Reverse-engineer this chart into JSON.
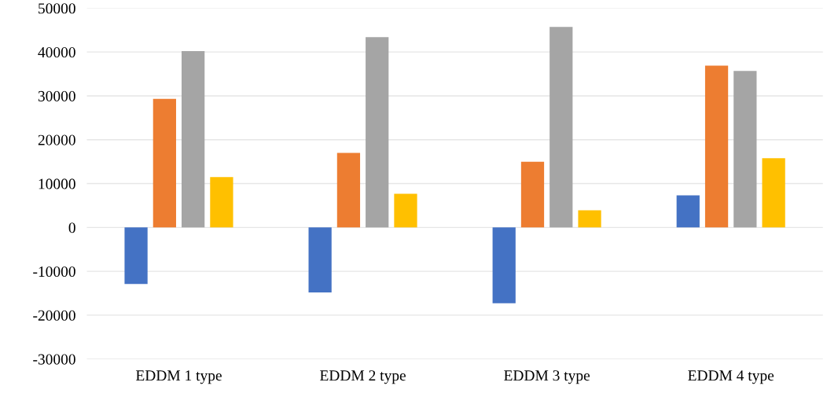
{
  "chart_data": {
    "type": "bar",
    "categories": [
      "EDDM 1 type",
      "EDDM 2 type",
      "EDDM 3 type",
      "EDDM 4 type"
    ],
    "series": [
      {
        "color": "#4472c4",
        "values": [
          -12900,
          -14800,
          -17300,
          7300
        ]
      },
      {
        "color": "#ed7d31",
        "values": [
          29300,
          17000,
          15000,
          36900
        ]
      },
      {
        "color": "#a5a5a5",
        "values": [
          40200,
          43400,
          45700,
          35700
        ]
      },
      {
        "color": "#ffc000",
        "values": [
          11500,
          7700,
          3900,
          15800
        ]
      }
    ],
    "ylim": [
      -30000,
      50000
    ],
    "yticks": [
      -30000,
      -20000,
      -10000,
      0,
      10000,
      20000,
      30000,
      40000,
      50000
    ],
    "grid": "y"
  }
}
